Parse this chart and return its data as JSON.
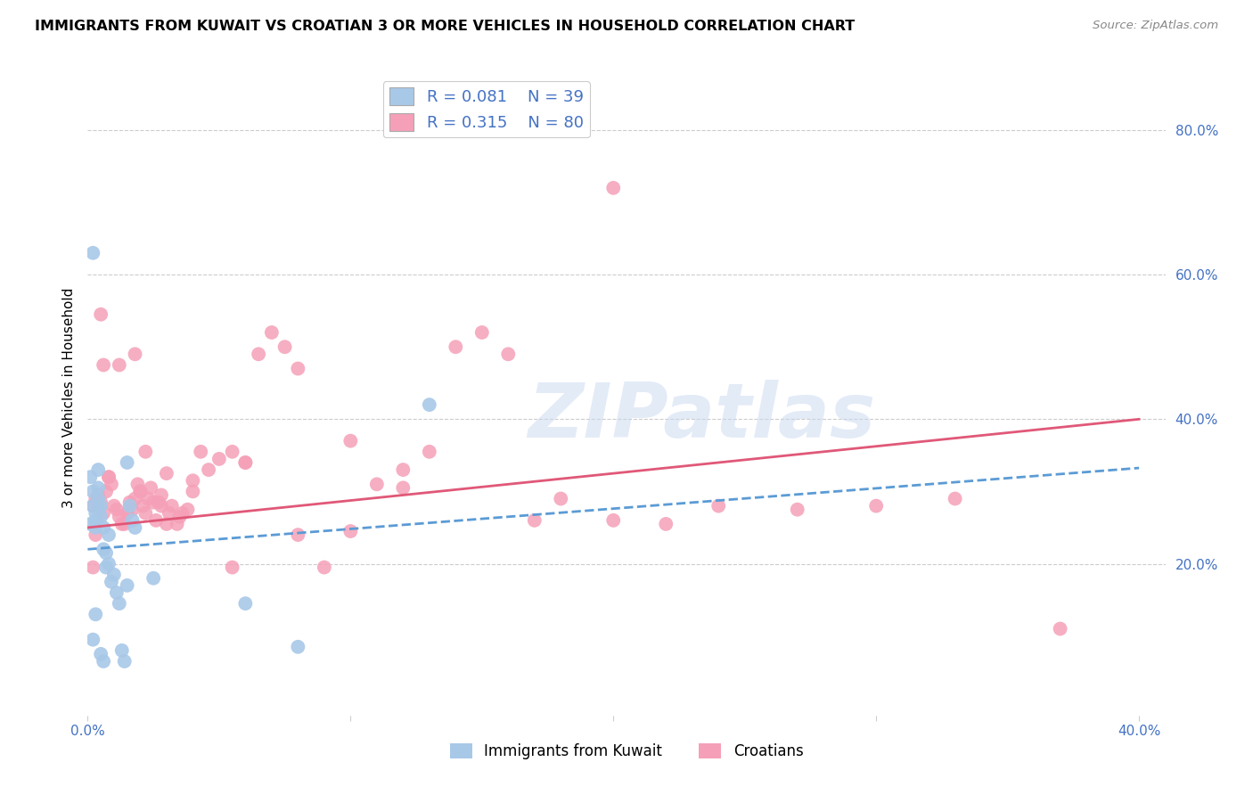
{
  "title": "IMMIGRANTS FROM KUWAIT VS CROATIAN 3 OR MORE VEHICLES IN HOUSEHOLD CORRELATION CHART",
  "source": "Source: ZipAtlas.com",
  "ylabel": "3 or more Vehicles in Household",
  "xlim": [
    0.0,
    0.41
  ],
  "ylim": [
    -0.01,
    0.87
  ],
  "ytick_positions_right": [
    0.2,
    0.4,
    0.6,
    0.8
  ],
  "ytick_labels_right": [
    "20.0%",
    "40.0%",
    "60.0%",
    "80.0%"
  ],
  "xtick_positions": [
    0.0,
    0.1,
    0.2,
    0.3,
    0.4
  ],
  "r_kuwait": 0.081,
  "n_kuwait": 39,
  "r_croatian": 0.315,
  "n_croatian": 80,
  "color_kuwait": "#a8c8e8",
  "color_croatian": "#f5a0b8",
  "color_kuwait_line": "#5b9bd5",
  "color_croatian_line": "#e05878",
  "color_blue": "#4472c4",
  "watermark_color": "#c8d8f0",
  "legend_label_kuwait": "Immigrants from Kuwait",
  "legend_label_croatian": "Croatians",
  "kuwait_line_x0": 0.0,
  "kuwait_line_y0": 0.22,
  "kuwait_line_x1": 0.16,
  "kuwait_line_y1": 0.265,
  "croatian_line_x0": 0.0,
  "croatian_line_y0": 0.25,
  "croatian_line_x1": 0.4,
  "croatian_line_y1": 0.4,
  "kuwait_x": [
    0.001,
    0.001,
    0.002,
    0.002,
    0.003,
    0.003,
    0.003,
    0.004,
    0.004,
    0.005,
    0.005,
    0.006,
    0.006,
    0.007,
    0.007,
    0.008,
    0.008,
    0.009,
    0.01,
    0.011,
    0.012,
    0.013,
    0.014,
    0.015,
    0.015,
    0.016,
    0.017,
    0.018,
    0.002,
    0.003,
    0.004,
    0.004,
    0.005,
    0.006,
    0.06,
    0.13,
    0.002,
    0.08,
    0.025
  ],
  "kuwait_y": [
    0.255,
    0.32,
    0.3,
    0.28,
    0.27,
    0.26,
    0.25,
    0.29,
    0.275,
    0.28,
    0.265,
    0.25,
    0.22,
    0.215,
    0.195,
    0.24,
    0.2,
    0.175,
    0.185,
    0.16,
    0.145,
    0.08,
    0.065,
    0.34,
    0.17,
    0.28,
    0.26,
    0.25,
    0.095,
    0.13,
    0.33,
    0.305,
    0.075,
    0.065,
    0.145,
    0.42,
    0.63,
    0.085,
    0.18
  ],
  "croatian_x": [
    0.002,
    0.003,
    0.004,
    0.005,
    0.006,
    0.007,
    0.008,
    0.009,
    0.01,
    0.011,
    0.012,
    0.013,
    0.014,
    0.015,
    0.016,
    0.017,
    0.018,
    0.019,
    0.02,
    0.021,
    0.022,
    0.023,
    0.024,
    0.025,
    0.026,
    0.027,
    0.028,
    0.03,
    0.031,
    0.032,
    0.034,
    0.036,
    0.038,
    0.04,
    0.043,
    0.046,
    0.05,
    0.055,
    0.06,
    0.065,
    0.07,
    0.075,
    0.08,
    0.09,
    0.1,
    0.11,
    0.12,
    0.13,
    0.14,
    0.15,
    0.16,
    0.18,
    0.2,
    0.22,
    0.24,
    0.27,
    0.3,
    0.33,
    0.37,
    0.005,
    0.018,
    0.022,
    0.03,
    0.055,
    0.1,
    0.2,
    0.003,
    0.008,
    0.015,
    0.02,
    0.028,
    0.04,
    0.06,
    0.08,
    0.12,
    0.17,
    0.002,
    0.006,
    0.012,
    0.035
  ],
  "croatian_y": [
    0.28,
    0.29,
    0.295,
    0.285,
    0.27,
    0.3,
    0.32,
    0.31,
    0.28,
    0.275,
    0.265,
    0.255,
    0.255,
    0.27,
    0.285,
    0.275,
    0.29,
    0.31,
    0.3,
    0.28,
    0.27,
    0.29,
    0.305,
    0.285,
    0.26,
    0.285,
    0.28,
    0.255,
    0.27,
    0.28,
    0.255,
    0.27,
    0.275,
    0.3,
    0.355,
    0.33,
    0.345,
    0.355,
    0.34,
    0.49,
    0.52,
    0.5,
    0.47,
    0.195,
    0.37,
    0.31,
    0.305,
    0.355,
    0.5,
    0.52,
    0.49,
    0.29,
    0.26,
    0.255,
    0.28,
    0.275,
    0.28,
    0.29,
    0.11,
    0.545,
    0.49,
    0.355,
    0.325,
    0.195,
    0.245,
    0.72,
    0.24,
    0.32,
    0.27,
    0.3,
    0.295,
    0.315,
    0.34,
    0.24,
    0.33,
    0.26,
    0.195,
    0.475,
    0.475,
    0.265
  ]
}
